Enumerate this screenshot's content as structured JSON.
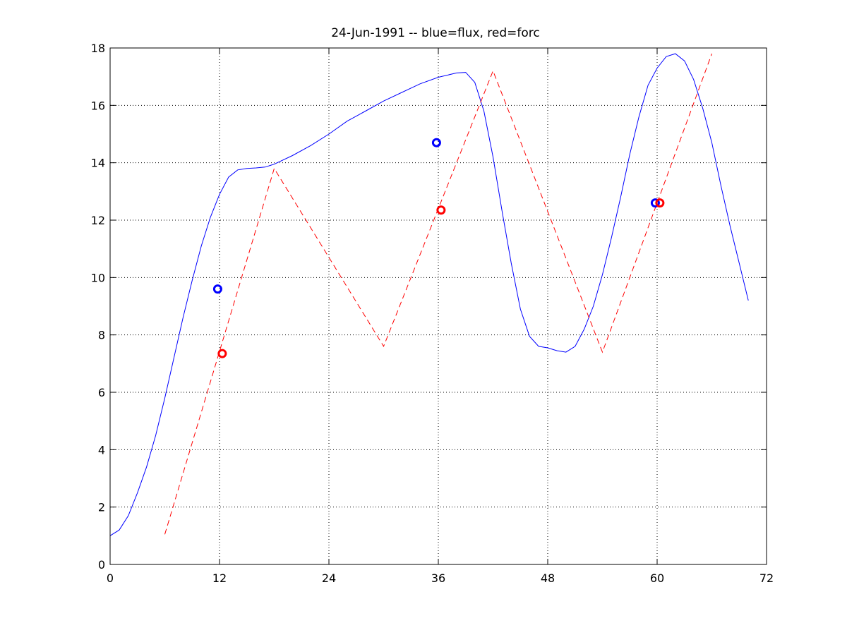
{
  "chart_data": {
    "type": "line",
    "title": "24-Jun-1991 -- blue=flux, red=forc",
    "xlabel": "",
    "ylabel": "",
    "xlim": [
      0,
      72
    ],
    "ylim": [
      0,
      18
    ],
    "xticks": [
      0,
      12,
      24,
      36,
      48,
      60,
      72
    ],
    "yticks": [
      0,
      2,
      4,
      6,
      8,
      10,
      12,
      14,
      16,
      18
    ],
    "grid": true,
    "series": [
      {
        "color": "#0000ff",
        "style": "solid",
        "points": [
          [
            0,
            1.0
          ],
          [
            1,
            1.2
          ],
          [
            2,
            1.7
          ],
          [
            3,
            2.5
          ],
          [
            4,
            3.4
          ],
          [
            5,
            4.5
          ],
          [
            6,
            5.8
          ],
          [
            7,
            7.2
          ],
          [
            8,
            8.6
          ],
          [
            9,
            9.9
          ],
          [
            10,
            11.1
          ],
          [
            11,
            12.1
          ],
          [
            12,
            12.9
          ],
          [
            13,
            13.5
          ],
          [
            14,
            13.75
          ],
          [
            15,
            13.8
          ],
          [
            16,
            13.82
          ],
          [
            17,
            13.85
          ],
          [
            18,
            13.95
          ],
          [
            20,
            14.25
          ],
          [
            22,
            14.6
          ],
          [
            24,
            15.0
          ],
          [
            26,
            15.45
          ],
          [
            28,
            15.8
          ],
          [
            30,
            16.15
          ],
          [
            32,
            16.45
          ],
          [
            34,
            16.75
          ],
          [
            36,
            16.98
          ],
          [
            38,
            17.13
          ],
          [
            39,
            17.15
          ],
          [
            40,
            16.8
          ],
          [
            41,
            15.8
          ],
          [
            42,
            14.2
          ],
          [
            43,
            12.3
          ],
          [
            44,
            10.5
          ],
          [
            45,
            8.9
          ],
          [
            46,
            7.95
          ],
          [
            47,
            7.6
          ],
          [
            48,
            7.55
          ],
          [
            49,
            7.45
          ],
          [
            50,
            7.4
          ],
          [
            51,
            7.6
          ],
          [
            52,
            8.2
          ],
          [
            53,
            9.0
          ],
          [
            54,
            10.1
          ],
          [
            55,
            11.4
          ],
          [
            56,
            12.8
          ],
          [
            57,
            14.3
          ],
          [
            58,
            15.6
          ],
          [
            59,
            16.7
          ],
          [
            60,
            17.3
          ],
          [
            61,
            17.7
          ],
          [
            62,
            17.8
          ],
          [
            63,
            17.55
          ],
          [
            64,
            16.9
          ],
          [
            65,
            15.9
          ],
          [
            66,
            14.7
          ],
          [
            67,
            13.2
          ],
          [
            68,
            11.8
          ],
          [
            69,
            10.5
          ],
          [
            70,
            9.2
          ]
        ]
      },
      {
        "color": "#ff0000",
        "style": "dashed",
        "points": [
          [
            6,
            1.05
          ],
          [
            18,
            13.8
          ],
          [
            30,
            7.6
          ],
          [
            42,
            17.2
          ],
          [
            54,
            7.4
          ],
          [
            66,
            17.8
          ]
        ]
      }
    ],
    "markers": [
      {
        "color": "#0000ff",
        "x": 11.8,
        "y": 9.6
      },
      {
        "color": "#0000ff",
        "x": 35.8,
        "y": 14.7
      },
      {
        "color": "#0000ff",
        "x": 59.8,
        "y": 12.6
      },
      {
        "color": "#ff0000",
        "x": 12.3,
        "y": 7.35
      },
      {
        "color": "#ff0000",
        "x": 36.3,
        "y": 12.35
      },
      {
        "color": "#ff0000",
        "x": 60.3,
        "y": 12.6
      }
    ]
  }
}
